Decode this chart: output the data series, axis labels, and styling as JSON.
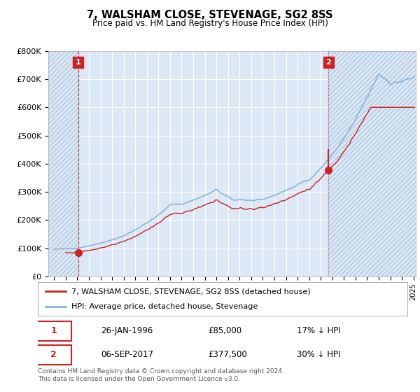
{
  "title": "7, WALSHAM CLOSE, STEVENAGE, SG2 8SS",
  "subtitle": "Price paid vs. HM Land Registry's House Price Index (HPI)",
  "ylim": [
    0,
    800000
  ],
  "yticks": [
    0,
    100000,
    200000,
    300000,
    400000,
    500000,
    600000,
    700000,
    800000
  ],
  "ytick_labels": [
    "£0",
    "£100K",
    "£200K",
    "£300K",
    "£400K",
    "£500K",
    "£600K",
    "£700K",
    "£800K"
  ],
  "hpi_color": "#8ab4d8",
  "price_color": "#cc2222",
  "annotation_box_color": "#cc2222",
  "dashed_line1_color": "#cc2222",
  "dashed_line2_color": "#cc2222",
  "plot_bg_color": "#dce8f5",
  "hatch_color": "#b0c8e0",
  "background_color": "#ffffff",
  "grid_color": "#ffffff",
  "legend_label_price": "7, WALSHAM CLOSE, STEVENAGE, SG2 8SS (detached house)",
  "legend_label_hpi": "HPI: Average price, detached house, Stevenage",
  "annotation1_label": "1",
  "annotation2_label": "2",
  "annotation1_date": "26-JAN-1996",
  "annotation1_price": "£85,000",
  "annotation1_pct": "17% ↓ HPI",
  "annotation2_date": "06-SEP-2017",
  "annotation2_price": "£377,500",
  "annotation2_pct": "30% ↓ HPI",
  "footer": "Contains HM Land Registry data © Crown copyright and database right 2024.\nThis data is licensed under the Open Government Licence v3.0.",
  "marker1_x": 1996.07,
  "marker1_y": 85000,
  "marker2_x": 2017.68,
  "marker2_y": 377500,
  "vline1_x": 1996.07,
  "vline2_x": 2017.68,
  "xtick_start": 1994,
  "xtick_end": 2025
}
